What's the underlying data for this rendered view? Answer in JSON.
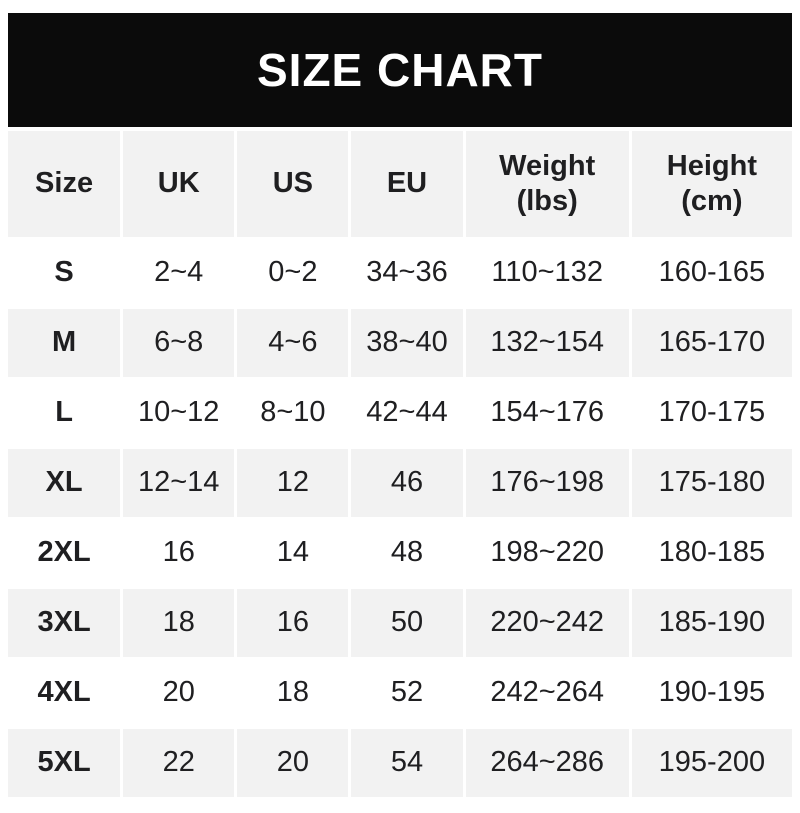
{
  "banner": {
    "title": "SIZE CHART",
    "background": "#0b0b0b",
    "text_color": "#ffffff"
  },
  "chart_data": {
    "type": "table",
    "title": "SIZE CHART",
    "columns": [
      "Size",
      "UK",
      "US",
      "EU",
      "Weight (lbs)",
      "Height (cm)"
    ],
    "rows": [
      [
        "S",
        "2~4",
        "0~2",
        "34~36",
        "110~132",
        "160-165"
      ],
      [
        "M",
        "6~8",
        "4~6",
        "38~40",
        "132~154",
        "165-170"
      ],
      [
        "L",
        "10~12",
        "8~10",
        "42~44",
        "154~176",
        "170-175"
      ],
      [
        "XL",
        "12~14",
        "12",
        "46",
        "176~198",
        "175-180"
      ],
      [
        "2XL",
        "16",
        "14",
        "48",
        "198~220",
        "180-185"
      ],
      [
        "3XL",
        "18",
        "16",
        "50",
        "220~242",
        "185-190"
      ],
      [
        "4XL",
        "20",
        "18",
        "52",
        "242~264",
        "190-195"
      ],
      [
        "5XL",
        "22",
        "20",
        "54",
        "264~286",
        "195-200"
      ]
    ],
    "layout": {
      "header_background": "#f2f2f2",
      "alt_row_background": "#f2f2f2",
      "row_background": "#ffffff",
      "text_color": "#1f1f21",
      "banner_background": "#0b0b0b",
      "banner_text_color": "#ffffff",
      "column_gap_color": "#ffffff"
    }
  }
}
